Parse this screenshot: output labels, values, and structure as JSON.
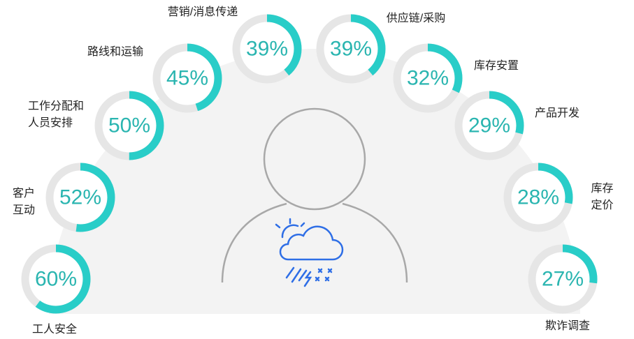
{
  "chart_data": {
    "type": "ring-gauges",
    "categories": [
      "工人安全",
      "客户\n互动",
      "工作分配和\n人员安排",
      "路线和运输",
      "营销/消息传递",
      "供应链/采购",
      "库存安置",
      "产品开发",
      "库存定价",
      "欺诈调查"
    ],
    "values": [
      60,
      52,
      50,
      45,
      39,
      39,
      32,
      29,
      28,
      27
    ],
    "value_labels": [
      "60%",
      "52%",
      "50%",
      "45%",
      "39%",
      "39%",
      "32%",
      "29%",
      "28%",
      "27%"
    ],
    "color": "#29cdc8",
    "track_color": "#e6e6e6"
  }
}
